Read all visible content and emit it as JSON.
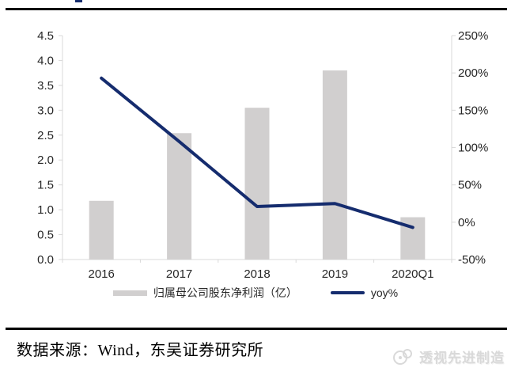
{
  "chart_data": {
    "type": "bar+line",
    "title": "",
    "categories": [
      "2016",
      "2017",
      "2018",
      "2019",
      "2020Q1"
    ],
    "series": [
      {
        "name": "归属母公司股东净利润（亿）",
        "type": "bar",
        "axis": "left",
        "color": "#d1cfcf",
        "values": [
          1.18,
          2.54,
          3.05,
          3.8,
          0.85
        ]
      },
      {
        "name": "yoy%",
        "type": "line",
        "axis": "right",
        "color": "#152c6e",
        "values": [
          193,
          108,
          21,
          25,
          -7
        ]
      }
    ],
    "left_axis": {
      "min": 0,
      "max": 4.5,
      "step": 0.5,
      "labels": [
        "0.0",
        "0.5",
        "1.0",
        "1.5",
        "2.0",
        "2.5",
        "3.0",
        "3.5",
        "4.0",
        "4.5"
      ]
    },
    "right_axis": {
      "min": -50,
      "max": 250,
      "step": 50,
      "labels": [
        "-50%",
        "0%",
        "50%",
        "100%",
        "150%",
        "200%",
        "250%"
      ],
      "unit": "%"
    },
    "grid": false,
    "legend_position": "bottom"
  },
  "footer": {
    "source_text": "数据来源：Wind，东吴证券研究所",
    "watermark_text": "透视先进制造"
  },
  "colors": {
    "bar": "#d1cfcf",
    "line": "#152c6e",
    "axis": "#d9d9d9",
    "tick_text": "#262626",
    "rule": "#000000",
    "watermark": "#d9d9d9"
  }
}
